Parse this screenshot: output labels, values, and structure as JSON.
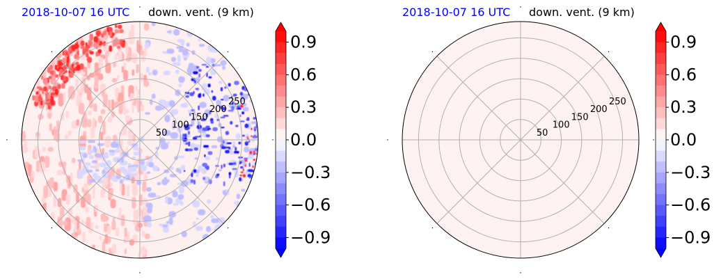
{
  "chart_data": [
    {
      "type": "heatmap",
      "projection": "polar",
      "date": "2018-10-07 16 UTC",
      "title": "down. vent. (9 km)",
      "r_ticks": [
        "50",
        "100",
        "150",
        "200",
        "250"
      ],
      "r_ticks_value": [
        50,
        100,
        150,
        200,
        250
      ],
      "r_max": 290,
      "grid": true,
      "field": "patchy: weak positive (pink) streaks in west/north-west, negative (blue) patches in east/north-east, strong positive at north-west edge",
      "colorbar": {
        "range": [
          -1.0,
          1.0
        ],
        "ticks": [
          "0.9",
          "0.6",
          "0.3",
          "0.0",
          "−0.3",
          "−0.6",
          "−0.9"
        ],
        "ticks_value": [
          0.9,
          0.6,
          0.3,
          0.0,
          -0.3,
          -0.6,
          -0.9
        ],
        "cmap": "bwr",
        "extend": "both",
        "levels": 20
      }
    },
    {
      "type": "heatmap",
      "projection": "polar",
      "date": "2018-10-07 16 UTC",
      "title": "down. vent. (9 km)",
      "r_ticks": [
        "50",
        "100",
        "150",
        "200",
        "250"
      ],
      "r_ticks_value": [
        50,
        100,
        150,
        200,
        250
      ],
      "r_max": 290,
      "grid": true,
      "field": "uniform, slightly positive (~0.05)",
      "colorbar": {
        "range": [
          -1.0,
          1.0
        ],
        "ticks": [
          "0.9",
          "0.6",
          "0.3",
          "0.0",
          "−0.3",
          "−0.6",
          "−0.9"
        ],
        "ticks_value": [
          0.9,
          0.6,
          0.3,
          0.0,
          -0.3,
          -0.6,
          -0.9
        ],
        "cmap": "bwr",
        "extend": "both",
        "levels": 20
      }
    }
  ]
}
